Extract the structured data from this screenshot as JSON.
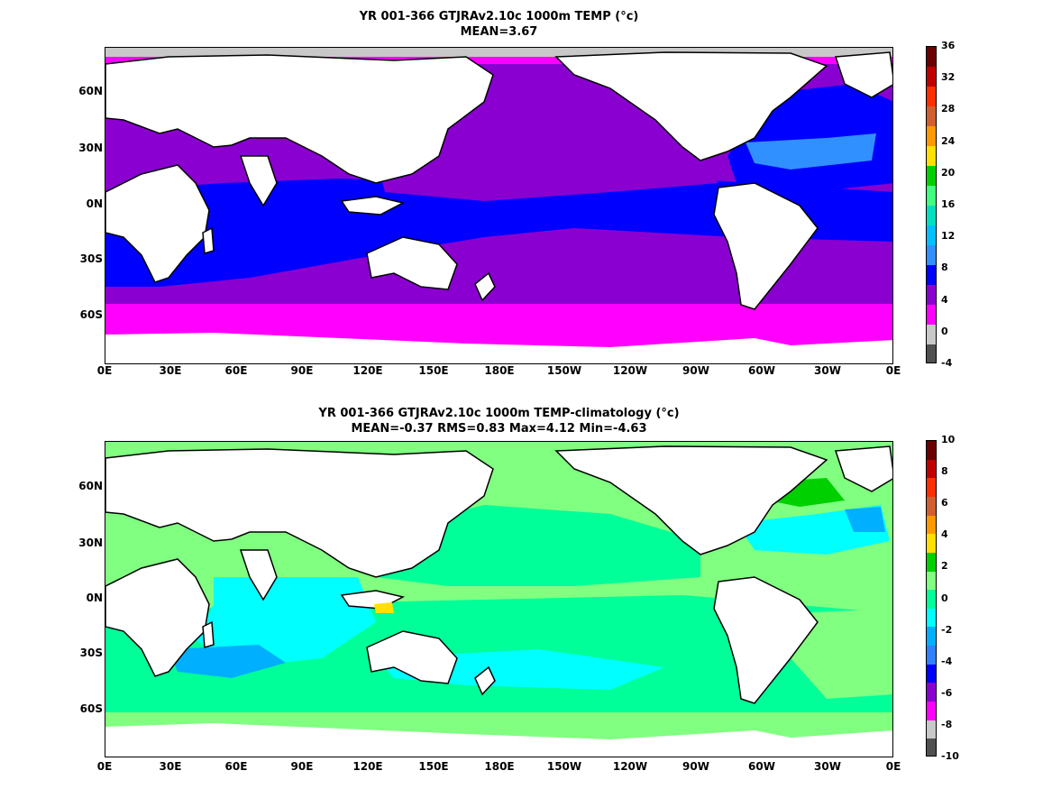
{
  "panels": [
    {
      "title_line1": "YR 001-366 GTJRAv2.10c 1000m TEMP (°c)",
      "title_line2": "MEAN=3.67",
      "lat_labels": [
        "60N",
        "30N",
        "0N",
        "30S",
        "60S"
      ],
      "lon_labels": [
        "0E",
        "30E",
        "60E",
        "90E",
        "120E",
        "150E",
        "180E",
        "150W",
        "120W",
        "90W",
        "60W",
        "30W",
        "0E"
      ],
      "colorbar": {
        "ticks": [
          "36",
          "32",
          "28",
          "24",
          "20",
          "16",
          "12",
          "8",
          "4",
          "0",
          "-4"
        ],
        "colors": [
          "#6b0000",
          "#c00000",
          "#ff3000",
          "#d06030",
          "#ff9900",
          "#ffe000",
          "#00d000",
          "#40ff80",
          "#00e0c0",
          "#00c0ff",
          "#3090ff",
          "#0000ff",
          "#8a00d0",
          "#ff00ff",
          "#c8c8c8",
          "#505050"
        ]
      }
    },
    {
      "title_line1": "YR 001-366 GTJRAv2.10c 1000m TEMP-climatology (°c)",
      "title_line2": "MEAN=-0.37   RMS=0.83   Max=4.12   Min=-4.63",
      "lat_labels": [
        "60N",
        "30N",
        "0N",
        "30S",
        "60S"
      ],
      "lon_labels": [
        "0E",
        "30E",
        "60E",
        "90E",
        "120E",
        "150E",
        "180E",
        "150W",
        "120W",
        "90W",
        "60W",
        "30W",
        "0E"
      ],
      "colorbar": {
        "ticks": [
          "10",
          "8",
          "6",
          "4",
          "2",
          "0",
          "-2",
          "-4",
          "-6",
          "-8",
          "-10"
        ],
        "colors": [
          "#6b0000",
          "#c00000",
          "#ff3000",
          "#d06030",
          "#ff9900",
          "#ffe000",
          "#00d000",
          "#80ff80",
          "#00ff99",
          "#00ffff",
          "#00b0ff",
          "#3080ff",
          "#0000ff",
          "#8a00d0",
          "#ff00ff",
          "#c8c8c8",
          "#505050"
        ]
      }
    }
  ]
}
